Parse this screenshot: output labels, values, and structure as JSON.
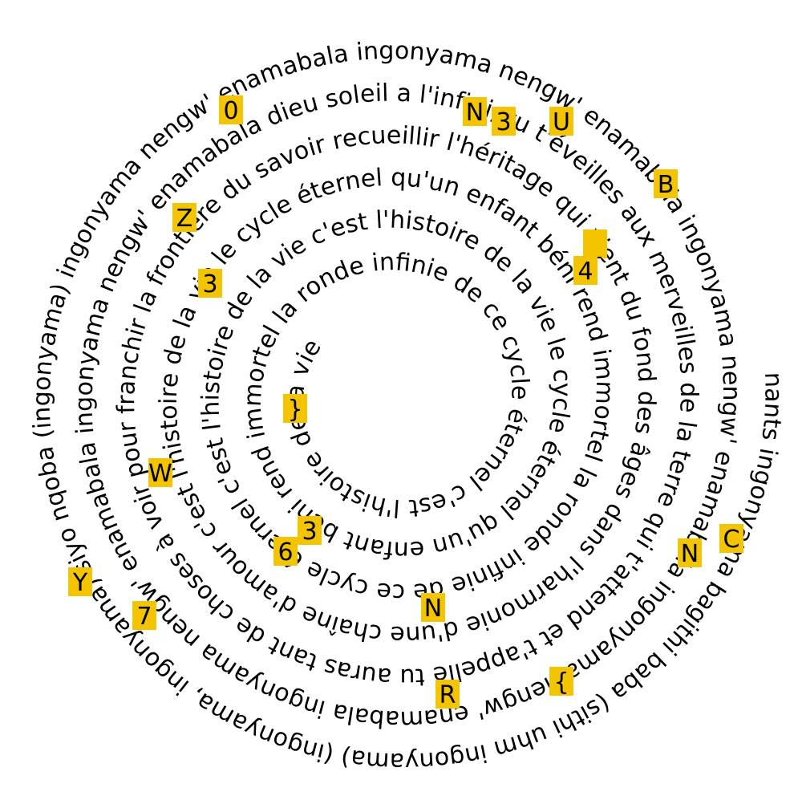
{
  "spiral": {
    "text": "nants ingonyama bagithi baba (sithi uhm ingonyama) (ingonyama, ingonyama) siyo nqoba (ingonyama) ingonyama nengw' enamabala ingonyama nengw' enamabala ingonyama nengw' enamabala ingonyama nengw' enamabala ingonyama nengw' enamabala ingonyama nengw' enamabala dieu soleil a l'infini, tu t'éveilles aux merveilles de la terre qui t'attend et t'appelle tu auras tant de choses à voir pour franchir la frontière du savoir recueillir l'héritage qui vient du fond des âges dans l'harmonie d'une chaîne d'amour c'est l'histoire de la vie le cycle éternel qu'un enfant béni rend immortel la ronde infinie de ce cycle éternel c'est l'histoire de la vie c'est l'histoire de la vie le cycle éternel qu'un enfant béni rend immortel la ronde infinie de ce cycle éternel c'est l'histoire de la vie",
    "color": "#000000",
    "highlight_color": "#f5c400"
  },
  "markers": [
    {
      "char": "0"
    },
    {
      "char": "N"
    },
    {
      "char": "3"
    },
    {
      "char": "U"
    },
    {
      "char": "B"
    },
    {
      "char": "Z"
    },
    {
      "char": "_"
    },
    {
      "char": "4"
    },
    {
      "char": "3"
    },
    {
      "char": "}"
    },
    {
      "char": "W"
    },
    {
      "char": "C"
    },
    {
      "char": "N"
    },
    {
      "char": "3"
    },
    {
      "char": "6"
    },
    {
      "char": "Y"
    },
    {
      "char": "N"
    },
    {
      "char": "7"
    },
    {
      "char": "{"
    },
    {
      "char": "R"
    }
  ]
}
